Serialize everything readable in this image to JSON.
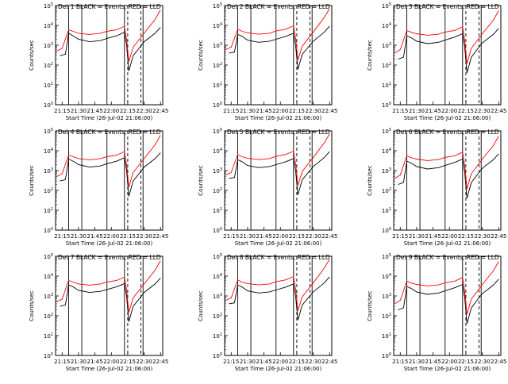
{
  "figure": {
    "xlabel": "Start Time (26-Jul-02 21:06:00)",
    "ylabel": "Counts/sec",
    "xticks": [
      "21:15",
      "21:30",
      "21:45",
      "22:00",
      "22:15",
      "22:30",
      "22:45"
    ],
    "yticks": [
      "10^0",
      "10^1",
      "10^2",
      "10^3",
      "10^4",
      "10^5"
    ],
    "colors": {
      "events": "#000000",
      "lld": "#ff0000",
      "axis": "#000000"
    }
  },
  "chart_data": [
    {
      "type": "line",
      "title": "Det 1 BLACK = Events, RED = LLD",
      "xlabel": "Start Time (26-Jul-02 21:06:00)",
      "ylabel": "Counts/sec",
      "x_range": [
        "21:09",
        "22:47"
      ],
      "y_log": true,
      "ylim": [
        1,
        100000
      ],
      "vlines_solid": [
        "21:21",
        "21:33",
        "21:56",
        "22:12",
        "22:29"
      ],
      "vlines_dashed": [
        "22:15",
        "22:27"
      ],
      "series": [
        {
          "name": "BLACK = Events",
          "x": [
            "21:13",
            "21:18",
            "21:21",
            "21:25",
            "21:30",
            "21:40",
            "21:50",
            "21:56",
            "22:05",
            "22:12",
            "22:14",
            "22:16",
            "22:20",
            "22:27",
            "22:30",
            "22:40",
            "22:45"
          ],
          "y": [
            300,
            350,
            4000,
            3000,
            2000,
            1500,
            1700,
            2200,
            3000,
            4500,
            1000,
            50,
            300,
            900,
            1500,
            4000,
            8000
          ]
        },
        {
          "name": "RED = LLD",
          "x": [
            "21:10",
            "21:15",
            "21:21",
            "21:25",
            "21:30",
            "21:40",
            "21:50",
            "21:56",
            "22:05",
            "22:12",
            "22:14",
            "22:16",
            "22:20",
            "22:27",
            "22:30",
            "22:40",
            "22:45"
          ],
          "y": [
            500,
            700,
            6000,
            5000,
            4000,
            3500,
            4000,
            5000,
            6000,
            9000,
            2000,
            150,
            800,
            2500,
            4000,
            20000,
            60000
          ]
        }
      ]
    },
    {
      "type": "line",
      "title": "Det 2 BLACK = Events, RED = LLD",
      "xlabel": "Start Time (26-Jul-02 21:06:00)",
      "ylabel": "Counts/sec",
      "x_range": [
        "21:09",
        "22:47"
      ],
      "y_log": true,
      "ylim": [
        1,
        100000
      ],
      "vlines_solid": [
        "21:21",
        "21:33",
        "21:56",
        "22:12",
        "22:29"
      ],
      "vlines_dashed": [
        "22:15",
        "22:27"
      ],
      "series": [
        {
          "name": "BLACK = Events",
          "x": [
            "21:13",
            "21:18",
            "21:21",
            "21:25",
            "21:30",
            "21:40",
            "21:50",
            "21:56",
            "22:05",
            "22:12",
            "22:14",
            "22:16",
            "22:20",
            "22:27",
            "22:30",
            "22:40",
            "22:45"
          ],
          "y": [
            400,
            450,
            3500,
            2800,
            1800,
            1400,
            1600,
            2000,
            2800,
            4000,
            900,
            60,
            350,
            1000,
            1600,
            4500,
            9000
          ]
        },
        {
          "name": "RED = LLD",
          "x": [
            "21:10",
            "21:15",
            "21:21",
            "21:25",
            "21:30",
            "21:40",
            "21:50",
            "21:56",
            "22:05",
            "22:12",
            "22:14",
            "22:16",
            "22:20",
            "22:27",
            "22:30",
            "22:40",
            "22:45"
          ],
          "y": [
            600,
            800,
            6500,
            5000,
            4200,
            3600,
            4000,
            5200,
            6500,
            9500,
            2200,
            180,
            900,
            2800,
            4500,
            25000,
            70000
          ]
        }
      ]
    },
    {
      "type": "line",
      "title": "Det 3 BLACK = Events, RED = LLD",
      "xlabel": "Start Time (26-Jul-02 21:06:00)",
      "ylabel": "Counts/sec",
      "x_range": [
        "21:09",
        "22:47"
      ],
      "y_log": true,
      "ylim": [
        1,
        100000
      ],
      "vlines_solid": [
        "21:21",
        "21:33",
        "21:56",
        "22:12",
        "22:29"
      ],
      "vlines_dashed": [
        "22:15",
        "22:27"
      ],
      "series": [
        {
          "name": "BLACK = Events",
          "x": [
            "21:13",
            "21:18",
            "21:21",
            "21:25",
            "21:30",
            "21:40",
            "21:50",
            "21:56",
            "22:05",
            "22:12",
            "22:14",
            "22:16",
            "22:20",
            "22:27",
            "22:30",
            "22:40",
            "22:45"
          ],
          "y": [
            200,
            250,
            3000,
            2400,
            1600,
            1200,
            1400,
            1800,
            2600,
            3800,
            800,
            40,
            250,
            800,
            1300,
            3500,
            7000
          ]
        },
        {
          "name": "RED = LLD",
          "x": [
            "21:10",
            "21:15",
            "21:21",
            "21:25",
            "21:30",
            "21:40",
            "21:50",
            "21:56",
            "22:05",
            "22:12",
            "22:14",
            "22:16",
            "22:20",
            "22:27",
            "22:30",
            "22:40",
            "22:45"
          ],
          "y": [
            400,
            600,
            5500,
            4500,
            3800,
            3200,
            3600,
            4600,
            5600,
            8500,
            1800,
            120,
            700,
            2200,
            3800,
            18000,
            55000
          ]
        }
      ]
    },
    {
      "type": "line",
      "title": "Det 4 BLACK = Events, RED = LLD",
      "xlabel": "Start Time (26-Jul-02 21:06:00)",
      "ylabel": "Counts/sec",
      "x_range": [
        "21:09",
        "22:47"
      ],
      "y_log": true,
      "ylim": [
        1,
        100000
      ],
      "vlines_solid": [
        "21:21",
        "21:33",
        "21:56",
        "22:12",
        "22:29"
      ],
      "vlines_dashed": [
        "22:15",
        "22:27"
      ],
      "series": [
        {
          "name": "BLACK = Events",
          "x": [
            "21:13",
            "21:18",
            "21:21",
            "21:25",
            "21:30",
            "21:40",
            "21:50",
            "21:56",
            "22:05",
            "22:12",
            "22:14",
            "22:16",
            "22:20",
            "22:27",
            "22:30",
            "22:40",
            "22:45"
          ],
          "y": [
            300,
            350,
            3800,
            3000,
            2000,
            1500,
            1700,
            2200,
            3000,
            4400,
            1000,
            50,
            300,
            900,
            1500,
            4000,
            8000
          ]
        },
        {
          "name": "RED = LLD",
          "x": [
            "21:10",
            "21:15",
            "21:21",
            "21:25",
            "21:30",
            "21:40",
            "21:50",
            "21:56",
            "22:05",
            "22:12",
            "22:14",
            "22:16",
            "22:20",
            "22:27",
            "22:30",
            "22:40",
            "22:45"
          ],
          "y": [
            500,
            700,
            6000,
            5000,
            4000,
            3500,
            4000,
            5000,
            6000,
            9000,
            2000,
            150,
            800,
            2500,
            4000,
            20000,
            60000
          ]
        }
      ]
    },
    {
      "type": "line",
      "title": "Det 5 BLACK = Events, RED = LLD",
      "xlabel": "Start Time (26-Jul-02 21:06:00)",
      "ylabel": "Counts/sec",
      "x_range": [
        "21:09",
        "22:47"
      ],
      "y_log": true,
      "ylim": [
        1,
        100000
      ],
      "vlines_solid": [
        "21:21",
        "21:33",
        "21:56",
        "22:12",
        "22:29"
      ],
      "vlines_dashed": [
        "22:15",
        "22:27"
      ],
      "series": [
        {
          "name": "BLACK = Events",
          "x": [
            "21:13",
            "21:18",
            "21:21",
            "21:25",
            "21:30",
            "21:40",
            "21:50",
            "21:56",
            "22:05",
            "22:12",
            "22:14",
            "22:16",
            "22:20",
            "22:27",
            "22:30",
            "22:40",
            "22:45"
          ],
          "y": [
            400,
            450,
            3500,
            2800,
            1800,
            1400,
            1600,
            2000,
            2800,
            4000,
            900,
            60,
            350,
            1000,
            1600,
            4500,
            9000
          ]
        },
        {
          "name": "RED = LLD",
          "x": [
            "21:10",
            "21:15",
            "21:21",
            "21:25",
            "21:30",
            "21:40",
            "21:50",
            "21:56",
            "22:05",
            "22:12",
            "22:14",
            "22:16",
            "22:20",
            "22:27",
            "22:30",
            "22:40",
            "22:45"
          ],
          "y": [
            600,
            800,
            6500,
            5000,
            4200,
            3600,
            4000,
            5200,
            6500,
            9500,
            2200,
            180,
            900,
            2800,
            4500,
            25000,
            70000
          ]
        }
      ]
    },
    {
      "type": "line",
      "title": "Det 6 BLACK = Events, RED = LLD",
      "xlabel": "Start Time (26-Jul-02 21:06:00)",
      "ylabel": "Counts/sec",
      "x_range": [
        "21:09",
        "22:47"
      ],
      "y_log": true,
      "ylim": [
        1,
        100000
      ],
      "vlines_solid": [
        "21:21",
        "21:33",
        "21:56",
        "22:12",
        "22:29"
      ],
      "vlines_dashed": [
        "22:15",
        "22:27"
      ],
      "series": [
        {
          "name": "BLACK = Events",
          "x": [
            "21:13",
            "21:18",
            "21:21",
            "21:25",
            "21:30",
            "21:40",
            "21:50",
            "21:56",
            "22:05",
            "22:12",
            "22:14",
            "22:16",
            "22:20",
            "22:27",
            "22:30",
            "22:40",
            "22:45"
          ],
          "y": [
            200,
            250,
            3000,
            2400,
            1600,
            1200,
            1400,
            1800,
            2600,
            3800,
            800,
            40,
            250,
            800,
            1300,
            3500,
            7000
          ]
        },
        {
          "name": "RED = LLD",
          "x": [
            "21:10",
            "21:15",
            "21:21",
            "21:25",
            "21:30",
            "21:40",
            "21:50",
            "21:56",
            "22:05",
            "22:12",
            "22:14",
            "22:16",
            "22:20",
            "22:27",
            "22:30",
            "22:40",
            "22:45"
          ],
          "y": [
            400,
            600,
            5500,
            4500,
            3800,
            3200,
            3600,
            4600,
            5600,
            8500,
            1800,
            120,
            700,
            2200,
            3800,
            18000,
            55000
          ]
        }
      ]
    },
    {
      "type": "line",
      "title": "Det 7 BLACK = Events, RED = LLD",
      "xlabel": "Start Time (26-Jul-02 21:06:00)",
      "ylabel": "Counts/sec",
      "x_range": [
        "21:09",
        "22:47"
      ],
      "y_log": true,
      "ylim": [
        1,
        100000
      ],
      "vlines_solid": [
        "21:21",
        "21:33",
        "21:56",
        "22:12",
        "22:29"
      ],
      "vlines_dashed": [
        "22:15",
        "22:27"
      ],
      "series": [
        {
          "name": "BLACK = Events",
          "x": [
            "21:13",
            "21:18",
            "21:21",
            "21:25",
            "21:30",
            "21:40",
            "21:50",
            "21:56",
            "22:05",
            "22:12",
            "22:14",
            "22:16",
            "22:20",
            "22:27",
            "22:30",
            "22:40",
            "22:45"
          ],
          "y": [
            300,
            350,
            3600,
            2900,
            1900,
            1500,
            1700,
            2100,
            2900,
            4200,
            950,
            50,
            300,
            900,
            1500,
            4000,
            8000
          ]
        },
        {
          "name": "RED = LLD",
          "x": [
            "21:10",
            "21:15",
            "21:21",
            "21:25",
            "21:30",
            "21:40",
            "21:50",
            "21:56",
            "22:05",
            "22:12",
            "22:14",
            "22:16",
            "22:20",
            "22:27",
            "22:30",
            "22:40",
            "22:45"
          ],
          "y": [
            500,
            700,
            6000,
            5000,
            4000,
            3500,
            4000,
            5000,
            6000,
            9000,
            2000,
            150,
            800,
            2500,
            4000,
            20000,
            60000
          ]
        }
      ]
    },
    {
      "type": "line",
      "title": "Det 8 BLACK = Events, RED = LLD",
      "xlabel": "Start Time (26-Jul-02 21:06:00)",
      "ylabel": "Counts/sec",
      "x_range": [
        "21:09",
        "22:47"
      ],
      "y_log": true,
      "ylim": [
        1,
        100000
      ],
      "vlines_solid": [
        "21:21",
        "21:33",
        "21:56",
        "22:12",
        "22:29"
      ],
      "vlines_dashed": [
        "22:15",
        "22:27"
      ],
      "series": [
        {
          "name": "BLACK = Events",
          "x": [
            "21:13",
            "21:18",
            "21:21",
            "21:25",
            "21:30",
            "21:40",
            "21:50",
            "21:56",
            "22:05",
            "22:12",
            "22:14",
            "22:16",
            "22:20",
            "22:27",
            "22:30",
            "22:40",
            "22:45"
          ],
          "y": [
            400,
            450,
            3500,
            2800,
            1800,
            1400,
            1600,
            2000,
            2800,
            4000,
            900,
            60,
            350,
            1000,
            1600,
            4500,
            9000
          ]
        },
        {
          "name": "RED = LLD",
          "x": [
            "21:10",
            "21:15",
            "21:21",
            "21:25",
            "21:30",
            "21:40",
            "21:50",
            "21:56",
            "22:05",
            "22:12",
            "22:14",
            "22:16",
            "22:20",
            "22:27",
            "22:30",
            "22:40",
            "22:45"
          ],
          "y": [
            600,
            800,
            6500,
            5000,
            4200,
            3600,
            4000,
            5200,
            6500,
            9500,
            2200,
            180,
            900,
            2800,
            4500,
            25000,
            70000
          ]
        }
      ]
    },
    {
      "type": "line",
      "title": "Det 9 BLACK = Events, RED = LLD",
      "xlabel": "Start Time (26-Jul-02 21:06:00)",
      "ylabel": "Counts/sec",
      "x_range": [
        "21:09",
        "22:47"
      ],
      "y_log": true,
      "ylim": [
        1,
        100000
      ],
      "vlines_solid": [
        "21:21",
        "21:33",
        "21:56",
        "22:12",
        "22:29"
      ],
      "vlines_dashed": [
        "22:15",
        "22:27"
      ],
      "series": [
        {
          "name": "BLACK = Events",
          "x": [
            "21:13",
            "21:18",
            "21:21",
            "21:25",
            "21:30",
            "21:40",
            "21:50",
            "21:56",
            "22:05",
            "22:12",
            "22:14",
            "22:16",
            "22:20",
            "22:27",
            "22:30",
            "22:40",
            "22:45"
          ],
          "y": [
            200,
            250,
            3000,
            2400,
            1600,
            1200,
            1400,
            1800,
            2600,
            3800,
            800,
            40,
            250,
            800,
            1300,
            3500,
            7000
          ]
        },
        {
          "name": "RED = LLD",
          "x": [
            "21:10",
            "21:15",
            "21:21",
            "21:25",
            "21:30",
            "21:40",
            "21:50",
            "21:56",
            "22:05",
            "22:12",
            "22:14",
            "22:16",
            "22:20",
            "22:27",
            "22:30",
            "22:40",
            "22:45"
          ],
          "y": [
            400,
            600,
            5500,
            4500,
            3800,
            3200,
            3600,
            4600,
            5600,
            8500,
            1800,
            120,
            700,
            2200,
            3800,
            18000,
            55000
          ]
        }
      ]
    }
  ]
}
